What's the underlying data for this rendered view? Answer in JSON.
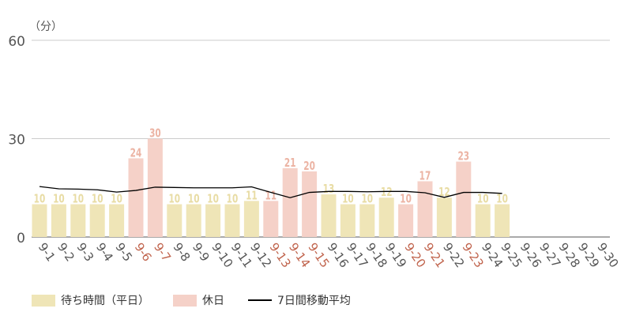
{
  "chart_data": {
    "type": "bar",
    "unit_label": "（分）",
    "ylim": [
      0,
      60
    ],
    "yticks": [
      0,
      30,
      60
    ],
    "grid": true,
    "categories": [
      "9-1",
      "9-2",
      "9-3",
      "9-4",
      "9-5",
      "9-6",
      "9-7",
      "9-8",
      "9-9",
      "9-10",
      "9-11",
      "9-12",
      "9-13",
      "9-14",
      "9-15",
      "9-16",
      "9-17",
      "9-18",
      "9-19",
      "9-20",
      "9-21",
      "9-22",
      "9-23",
      "9-24",
      "9-25",
      "9-26",
      "9-27",
      "9-28",
      "9-29",
      "9-30"
    ],
    "holiday_categories": [
      "9-6",
      "9-7",
      "9-13",
      "9-14",
      "9-15",
      "9-20",
      "9-21",
      "9-23"
    ],
    "values": [
      10,
      10,
      10,
      10,
      10,
      24,
      30,
      10,
      10,
      10,
      10,
      11,
      11,
      21,
      20,
      13,
      10,
      10,
      12,
      10,
      17,
      12,
      23,
      10,
      10,
      null,
      null,
      null,
      null,
      null
    ],
    "moving_average": [
      15.4,
      14.7,
      14.6,
      14.4,
      13.7,
      14.2,
      15.2,
      15.1,
      15.0,
      15.0,
      15.0,
      15.3,
      13.6,
      12.0,
      13.6,
      13.9,
      13.9,
      13.8,
      13.9,
      13.9,
      13.5,
      12.1,
      13.6,
      13.6,
      13.3,
      null,
      null,
      null,
      null,
      null
    ],
    "legend": [
      {
        "key": "weekday",
        "label": "待ち時間（平日）",
        "color": "#efe5b7"
      },
      {
        "key": "holiday",
        "label": "休日",
        "color": "#f5d1c8"
      },
      {
        "key": "average",
        "label": "7日間移動平均",
        "color": "#000000"
      }
    ],
    "colors": {
      "weekday_bar": "#efe5b7",
      "holiday_bar": "#f5d1c8",
      "weekday_label": "#e8dca4",
      "holiday_label": "#ecb4a4",
      "holiday_tick": "#c0634c",
      "tick": "#555555",
      "grid": "#cccccc",
      "axis": "#555555",
      "line": "#000000"
    }
  }
}
